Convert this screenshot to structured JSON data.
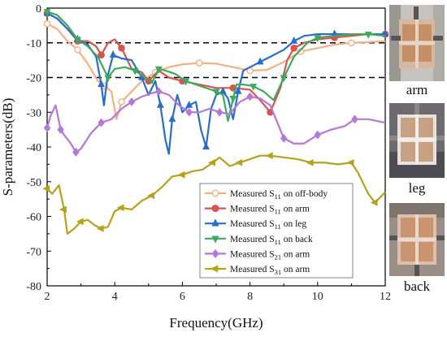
{
  "chart_data": {
    "type": "line",
    "xlabel": "Frequency(GHz)",
    "ylabel": "S-parameters(dB)",
    "xlim": [
      2,
      12
    ],
    "ylim": [
      -80,
      0
    ],
    "xticks": [
      2,
      4,
      6,
      8,
      10,
      12
    ],
    "yticks": [
      0,
      -10,
      -20,
      -30,
      -40,
      -50,
      -60,
      -70,
      -80
    ],
    "reference_lines": [
      -10,
      -20
    ],
    "legend_position": "lower-right",
    "grid": false,
    "series": [
      {
        "name": "Measured S11 on off-body",
        "label_main": "Measured S",
        "label_sub": "11",
        "label_tail": " on off-body",
        "color": "#f4b183",
        "marker": "circle-open",
        "x": [
          2.0,
          2.3,
          2.6,
          2.9,
          3.2,
          3.5,
          3.7,
          3.9,
          4.05,
          4.2,
          4.5,
          4.8,
          5.2,
          5.6,
          6.0,
          6.5,
          7.0,
          7.5,
          8.0,
          8.5,
          9.0,
          9.5,
          10.0,
          10.5,
          11.0,
          11.5,
          12.0
        ],
        "y": [
          -4.5,
          -6.0,
          -9.5,
          -12.0,
          -16.0,
          -21.0,
          -22.5,
          -24.0,
          -32.0,
          -27.0,
          -24.0,
          -21.0,
          -18.5,
          -17.0,
          -16.2,
          -15.8,
          -16.0,
          -17.0,
          -18.0,
          -17.8,
          -15.5,
          -12.5,
          -11.5,
          -10.5,
          -10.0,
          -9.8,
          -9.5
        ]
      },
      {
        "name": "Measured S11 on arm",
        "label_main": "Measured S",
        "label_sub": "11",
        "label_tail": " on arm",
        "color": "#d9534f",
        "marker": "circle",
        "x": [
          2.0,
          2.3,
          2.6,
          2.9,
          3.2,
          3.45,
          3.6,
          3.8,
          4.0,
          4.2,
          4.5,
          4.8,
          5.0,
          5.3,
          5.6,
          6.0,
          6.5,
          7.0,
          7.5,
          8.0,
          8.3,
          8.6,
          8.9,
          9.1,
          9.3,
          9.6,
          10.0,
          10.5,
          11.0,
          11.5,
          12.0
        ],
        "y": [
          -1.5,
          -3.0,
          -6.0,
          -9.5,
          -9.5,
          -11.0,
          -13.5,
          -10.0,
          -9.0,
          -11.5,
          -17.5,
          -18.5,
          -21.0,
          -18.0,
          -20.0,
          -21.0,
          -22.0,
          -23.0,
          -23.0,
          -23.5,
          -26.5,
          -30.0,
          -23.0,
          -15.0,
          -11.5,
          -10.0,
          -9.0,
          -8.5,
          -8.0,
          -7.5,
          -7.5
        ]
      },
      {
        "name": "Measured S11 on leg",
        "label_main": "Measured S",
        "label_sub": "11",
        "label_tail": " on leg",
        "color": "#2a6cc9",
        "marker": "triangle-up",
        "x": [
          2.0,
          2.3,
          2.6,
          2.9,
          3.2,
          3.45,
          3.6,
          3.68,
          3.78,
          3.95,
          4.2,
          4.5,
          4.8,
          5.0,
          5.2,
          5.35,
          5.5,
          5.6,
          5.7,
          5.85,
          6.0,
          6.2,
          6.4,
          6.55,
          6.7,
          6.85,
          7.0,
          7.2,
          7.35,
          7.5,
          7.65,
          7.8,
          8.0,
          8.3,
          8.6,
          9.0,
          9.3,
          9.6,
          10.0,
          10.5,
          11.0,
          11.5,
          12.0
        ],
        "y": [
          -1.5,
          -3.0,
          -6.0,
          -9.0,
          -10.5,
          -14.0,
          -22.0,
          -28.0,
          -20.0,
          -13.5,
          -14.5,
          -15.0,
          -20.0,
          -25.0,
          -21.0,
          -28.0,
          -38.0,
          -42.0,
          -32.0,
          -25.0,
          -30.0,
          -28.0,
          -27.0,
          -35.0,
          -40.0,
          -29.0,
          -25.0,
          -24.0,
          -26.0,
          -32.0,
          -24.0,
          -18.0,
          -17.0,
          -15.5,
          -14.0,
          -12.0,
          -9.5,
          -8.0,
          -7.5,
          -7.5,
          -7.5,
          -7.5,
          -7.5
        ]
      },
      {
        "name": "Measured S11 on back",
        "label_main": "Measured S",
        "label_sub": "11",
        "label_tail": " on back",
        "color": "#3daa5c",
        "marker": "triangle-down",
        "x": [
          2.0,
          2.3,
          2.6,
          2.9,
          3.2,
          3.5,
          3.8,
          4.0,
          4.3,
          4.6,
          4.9,
          5.1,
          5.3,
          5.5,
          5.8,
          6.1,
          6.4,
          6.7,
          7.0,
          7.2,
          7.35,
          7.5,
          7.6,
          7.8,
          8.1,
          8.4,
          8.7,
          9.0,
          9.3,
          9.7,
          10.0,
          10.5,
          11.0,
          11.5,
          12.0
        ],
        "y": [
          -1.0,
          -2.0,
          -5.0,
          -9.0,
          -11.0,
          -14.0,
          -20.0,
          -17.5,
          -17.0,
          -18.0,
          -20.0,
          -21.5,
          -17.5,
          -18.0,
          -19.0,
          -21.0,
          -22.0,
          -23.0,
          -24.0,
          -25.0,
          -32.5,
          -26.0,
          -22.0,
          -22.0,
          -22.5,
          -24.0,
          -26.5,
          -20.0,
          -14.0,
          -10.0,
          -8.5,
          -8.0,
          -7.5,
          -7.5,
          -8.0
        ]
      },
      {
        "name": "Measured S21 on arm",
        "label_main": "Measured S",
        "label_sub": "21",
        "label_tail": " on arm",
        "color": "#b678d8",
        "marker": "diamond",
        "x": [
          2.0,
          2.1,
          2.25,
          2.4,
          2.5,
          2.7,
          2.85,
          3.0,
          3.3,
          3.6,
          3.9,
          4.2,
          4.5,
          4.8,
          5.1,
          5.3,
          5.6,
          5.9,
          6.2,
          6.5,
          6.8,
          7.1,
          7.4,
          7.7,
          8.0,
          8.3,
          8.6,
          9.0,
          9.3,
          9.6,
          10.0,
          10.4,
          10.8,
          11.1,
          11.5,
          12.0
        ],
        "y": [
          -34.5,
          -31.0,
          -28.0,
          -35.0,
          -36.5,
          -39.0,
          -41.5,
          -40.5,
          -36.0,
          -33.0,
          -32.0,
          -29.0,
          -27.0,
          -25.5,
          -24.5,
          -24.0,
          -25.0,
          -28.0,
          -30.0,
          -30.0,
          -29.0,
          -30.0,
          -30.5,
          -27.0,
          -25.5,
          -26.0,
          -28.0,
          -37.5,
          -39.0,
          -39.0,
          -36.5,
          -35.0,
          -34.0,
          -32.0,
          -32.0,
          -33.0
        ]
      },
      {
        "name": "Measured S31 on arm",
        "label_main": "Measured S",
        "label_sub": "31",
        "label_tail": " on arm",
        "color": "#b5a21c",
        "marker": "triangle-left",
        "x": [
          2.0,
          2.15,
          2.35,
          2.5,
          2.6,
          2.8,
          3.0,
          3.2,
          3.4,
          3.6,
          3.8,
          4.0,
          4.2,
          4.5,
          4.8,
          5.1,
          5.4,
          5.7,
          6.0,
          6.3,
          6.6,
          6.9,
          7.1,
          7.4,
          7.7,
          8.0,
          8.3,
          8.6,
          9.0,
          9.4,
          9.8,
          10.2,
          10.6,
          11.0,
          11.2,
          11.5,
          11.7,
          11.85,
          12.0
        ],
        "y": [
          -52.0,
          -53.5,
          -51.0,
          -58.0,
          -65.0,
          -63.5,
          -61.5,
          -61.0,
          -62.5,
          -63.5,
          -63.0,
          -58.5,
          -57.5,
          -58.0,
          -55.5,
          -54.0,
          -51.5,
          -48.5,
          -48.0,
          -47.0,
          -46.5,
          -44.5,
          -43.0,
          -45.5,
          -44.5,
          -43.5,
          -42.5,
          -42.5,
          -43.0,
          -43.5,
          -44.5,
          -44.5,
          -45.0,
          -44.5,
          -47.5,
          -53.5,
          -56.0,
          -54.5,
          -53.0
        ]
      }
    ]
  },
  "photos": [
    {
      "caption": "arm"
    },
    {
      "caption": "leg"
    },
    {
      "caption": "back"
    }
  ]
}
